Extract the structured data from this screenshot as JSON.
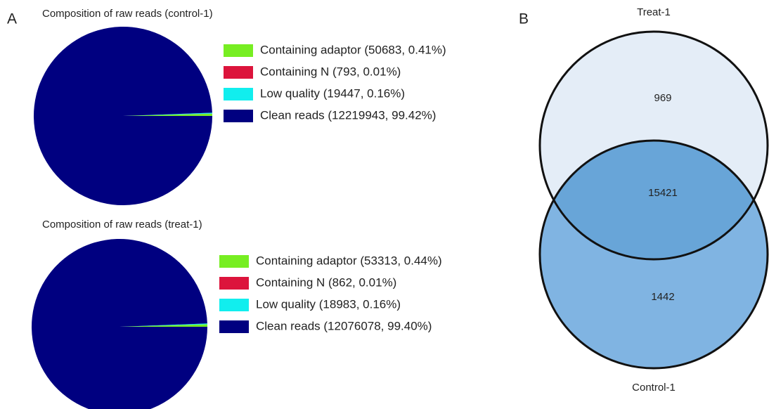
{
  "panels": [
    "A",
    "B"
  ],
  "chart_data": [
    {
      "type": "pie",
      "title": "Composition of raw reads (control-1)",
      "categories": [
        "Containing adaptor (50683, 0.41%)",
        "Containing N (793, 0.01%)",
        "Low quality (19447, 0.16%)",
        "Clean reads (12219943, 99.42%)"
      ],
      "values": [
        50683,
        793,
        19447,
        12219943
      ],
      "colors": [
        "#77ee22",
        "#dc143c",
        "#11eeee",
        "#000080"
      ]
    },
    {
      "type": "pie",
      "title": "Composition of raw reads (treat-1)",
      "categories": [
        "Containing adaptor (53313, 0.44%)",
        "Containing N (862, 0.01%)",
        "Low quality (18983, 0.16%)",
        "Clean reads (12076078, 99.40%)"
      ],
      "values": [
        53313,
        862,
        18983,
        12076078
      ],
      "colors": [
        "#77ee22",
        "#dc143c",
        "#11eeee",
        "#000080"
      ]
    },
    {
      "type": "venn",
      "sets": [
        {
          "name": "Treat-1",
          "color": "#e4edf7"
        },
        {
          "name": "Control-1",
          "color": "#80b4e2"
        }
      ],
      "values": [
        969,
        15421,
        1442
      ],
      "overlap_color": "#68a5d8"
    }
  ]
}
